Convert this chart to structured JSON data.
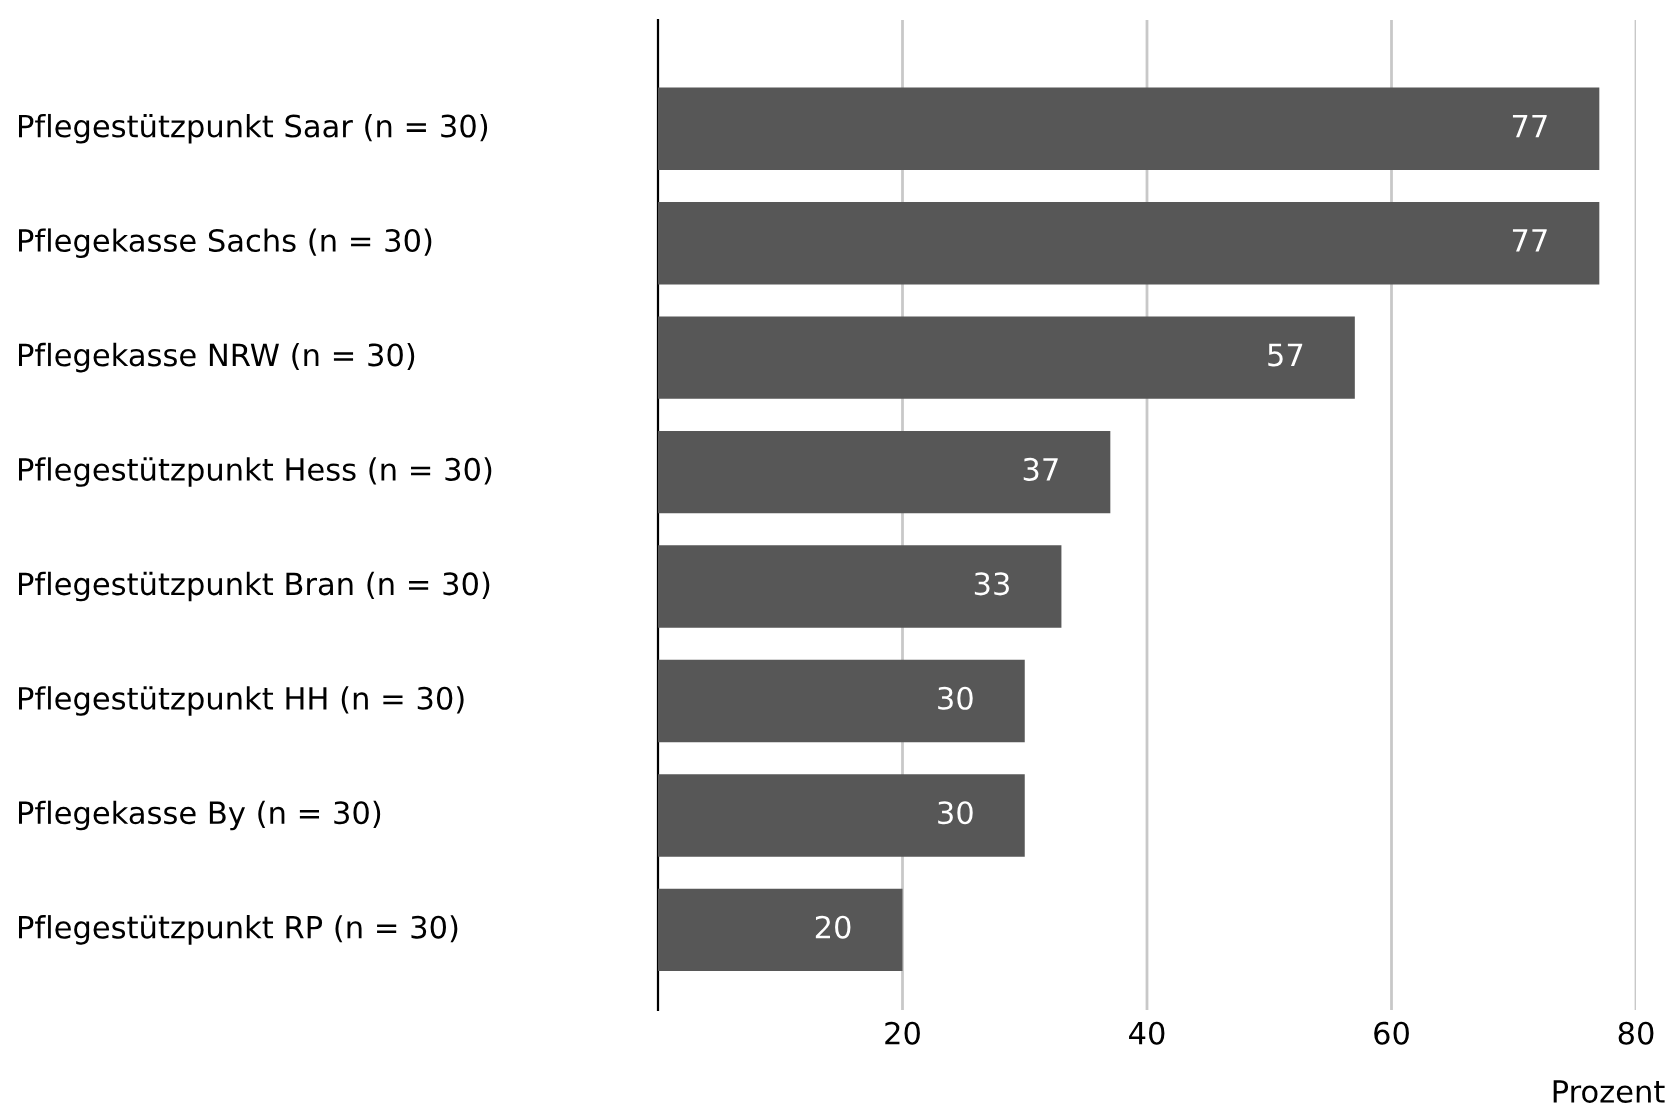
{
  "chart_data": {
    "type": "bar",
    "orientation": "horizontal",
    "xlabel": "Prozent",
    "categories": [
      "Pflegestützpunkt Saar (n = 30)",
      "Pflegekasse Sachs (n = 30)",
      "Pflegekasse NRW (n = 30)",
      "Pflegestützpunkt Hess (n = 30)",
      "Pflegestützpunkt Bran (n = 30)",
      "Pflegestützpunkt HH (n = 30)",
      "Pflegekasse By (n = 30)",
      "Pflegestützpunkt RP (n = 30)"
    ],
    "values": [
      77,
      77,
      57,
      37,
      33,
      30,
      30,
      20
    ],
    "color": "#575757",
    "data_labels": true,
    "xlim": [
      0,
      80
    ],
    "xticks": [
      20,
      40,
      60,
      80
    ],
    "grid": "x"
  }
}
